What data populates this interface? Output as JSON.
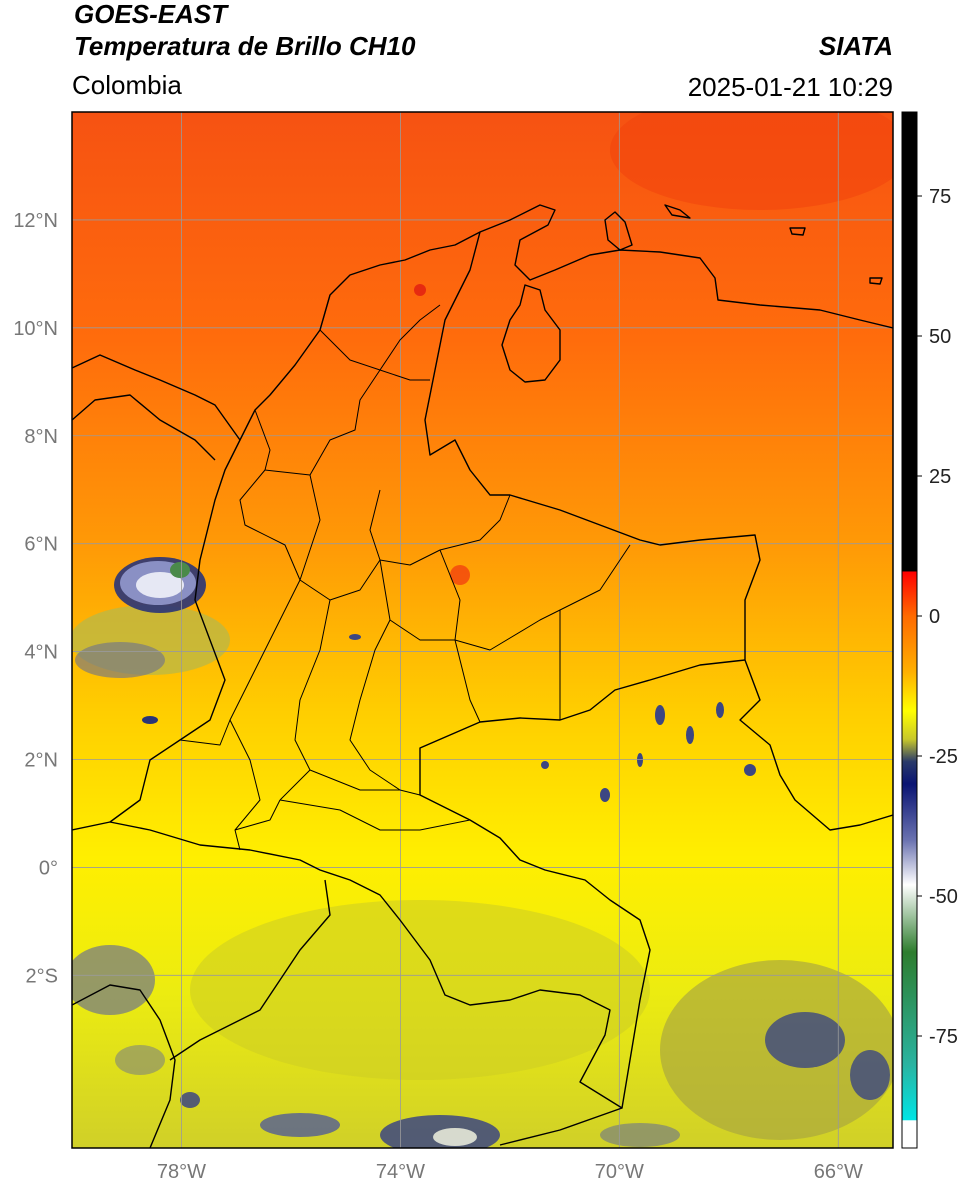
{
  "header": {
    "satellite": "GOES-EAST",
    "product": "Temperatura de Brillo CH10",
    "region": "Colombia",
    "organization": "SIATA",
    "datetime": "2025-01-21 10:29"
  },
  "map": {
    "lon_range": [
      -80,
      -65
    ],
    "lat_range": [
      -5.2,
      14
    ],
    "lat_ticks": [
      {
        "value": 12,
        "label": "12°N"
      },
      {
        "value": 10,
        "label": "10°N"
      },
      {
        "value": 8,
        "label": "8°N"
      },
      {
        "value": 6,
        "label": "6°N"
      },
      {
        "value": 4,
        "label": "4°N"
      },
      {
        "value": 2,
        "label": "2°N"
      },
      {
        "value": 0,
        "label": "0°"
      },
      {
        "value": -2,
        "label": "2°S"
      }
    ],
    "lon_ticks": [
      {
        "value": -78,
        "label": "78°W"
      },
      {
        "value": -74,
        "label": "74°W"
      },
      {
        "value": -70,
        "label": "70°W"
      },
      {
        "value": -66,
        "label": "66°W"
      }
    ],
    "gridlines": true,
    "colors": {
      "warm_red": "#f23a10",
      "orange": "#ff7a0a",
      "amber": "#ffb000",
      "yellow": "#ffff00",
      "olive": "#c8c82a",
      "slate": "#5a6490",
      "navy": "#0a1473",
      "white": "#ffffff",
      "green": "#2e7d2e",
      "cyan": "#00d9d9"
    }
  },
  "colorbar": {
    "range": [
      -95,
      90
    ],
    "ticks": [
      {
        "value": 75,
        "label": "75"
      },
      {
        "value": 50,
        "label": "50"
      },
      {
        "value": 25,
        "label": "25"
      },
      {
        "value": 0,
        "label": "0"
      },
      {
        "value": -25,
        "label": "-25"
      },
      {
        "value": -50,
        "label": "-50"
      },
      {
        "value": -75,
        "label": "-75"
      }
    ],
    "stops": [
      {
        "value": 90,
        "color": "#000000"
      },
      {
        "value": 8,
        "color": "#000000"
      },
      {
        "value": 7.9,
        "color": "#ff0000"
      },
      {
        "value": 0,
        "color": "#ff6a00"
      },
      {
        "value": -10,
        "color": "#ffb000"
      },
      {
        "value": -17,
        "color": "#ffff00"
      },
      {
        "value": -22,
        "color": "#c8c82a"
      },
      {
        "value": -26,
        "color": "#2a3a6a"
      },
      {
        "value": -30,
        "color": "#0a1473"
      },
      {
        "value": -40,
        "color": "#6a72b0"
      },
      {
        "value": -48,
        "color": "#ffffff"
      },
      {
        "value": -60,
        "color": "#2e7d2e"
      },
      {
        "value": -80,
        "color": "#2ab3a0"
      },
      {
        "value": -90,
        "color": "#00e5e5"
      },
      {
        "value": -90.1,
        "color": "#ffffff"
      },
      {
        "value": -95,
        "color": "#ffffff"
      }
    ]
  }
}
